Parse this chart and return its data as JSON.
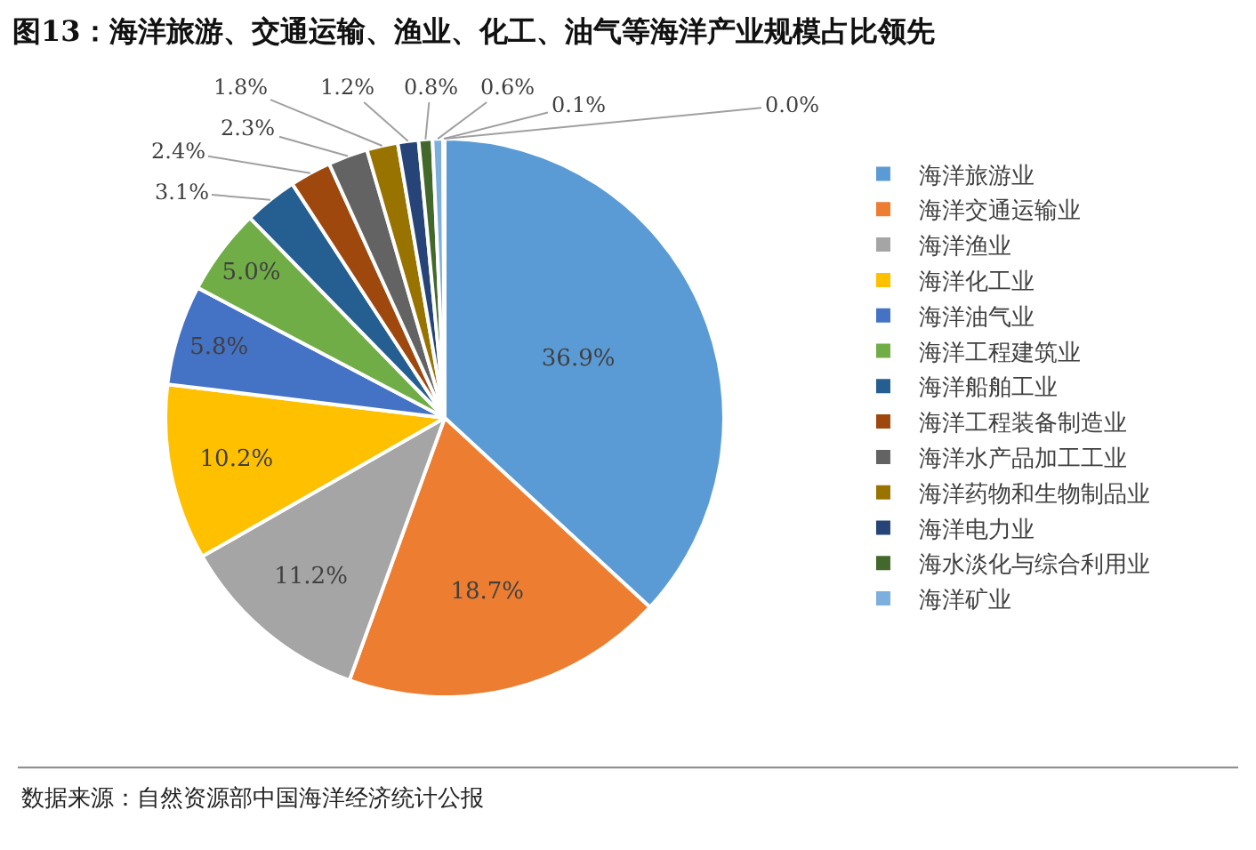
{
  "chart_data": {
    "type": "pie",
    "title": "图13：海洋旅游、交通运输、渔业、化工、油气等海洋产业规模占比领先",
    "categories": [
      "海洋旅游业",
      "海洋交通运输业",
      "海洋渔业",
      "海洋化工业",
      "海洋油气业",
      "海洋工程建筑业",
      "海洋船舶工业",
      "海洋工程装备制造业",
      "海洋水产品加工工业",
      "海洋药物和生物制品业",
      "海洋电力业",
      "海水淡化与综合利用业",
      "海洋矿业",
      null,
      null
    ],
    "values": [
      36.9,
      18.7,
      11.2,
      10.2,
      5.8,
      5.0,
      3.1,
      2.4,
      2.3,
      1.8,
      1.2,
      0.8,
      0.6,
      0.1,
      0.0
    ],
    "colors": [
      "#5b9bd5",
      "#ed7d31",
      "#a5a5a5",
      "#ffc000",
      "#4472c4",
      "#70ad47",
      "#255e91",
      "#9e480e",
      "#636363",
      "#997300",
      "#264478",
      "#43682b",
      "#7cafdd",
      "#f1975a",
      "#b7b7b7"
    ],
    "value_labels": [
      "36.9%",
      "18.7%",
      "11.2%",
      "10.2%",
      "5.8%",
      "5.0%",
      "3.1%",
      "2.4%",
      "2.3%",
      "1.8%",
      "1.2%",
      "0.8%",
      "0.6%",
      "0.1%",
      "0.0%"
    ],
    "legend": "right",
    "annotations": [
      "数据来源：自然资源部中国海洋经济统计公报"
    ]
  }
}
